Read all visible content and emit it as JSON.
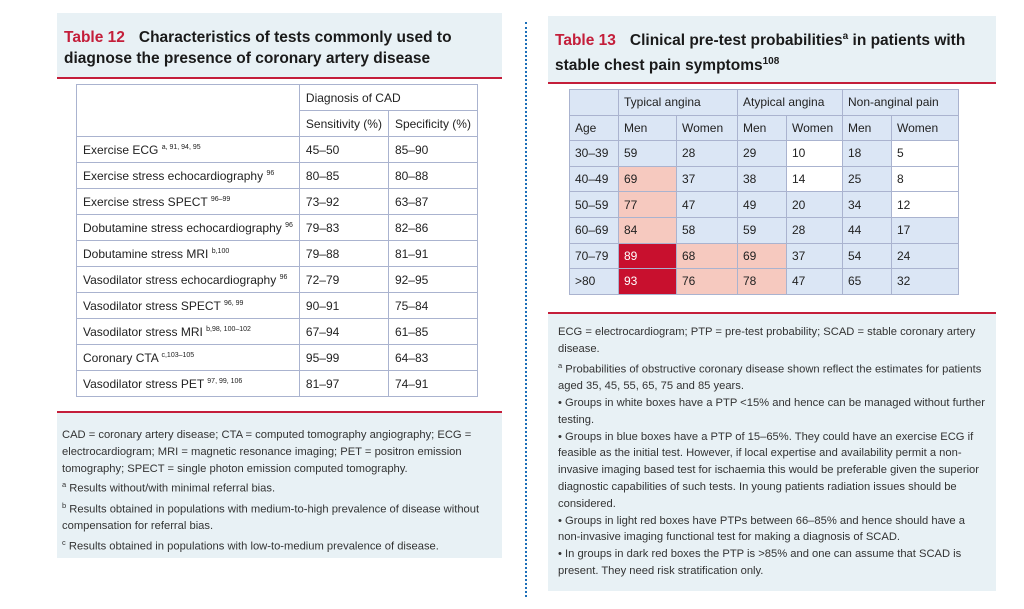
{
  "table12": {
    "number": "Table 12",
    "title": "Characteristics of tests commonly used to diagnose the presence of coronary artery disease",
    "header_group": "Diagnosis of CAD",
    "col_sensitivity": "Sensitivity (%)",
    "col_specificity": "Specificity (%)",
    "rows": [
      {
        "test": "Exercise ECG",
        "ref": "a, 91, 94, 95",
        "sens": "45–50",
        "spec": "85–90"
      },
      {
        "test": "Exercise stress echocardiography",
        "ref": "96",
        "sens": "80–85",
        "spec": "80–88"
      },
      {
        "test": "Exercise stress SPECT",
        "ref": "96–99",
        "sens": "73–92",
        "spec": "63–87"
      },
      {
        "test": "Dobutamine stress echocardiography",
        "ref": "96",
        "sens": "79–83",
        "spec": "82–86"
      },
      {
        "test": "Dobutamine stress MRI",
        "ref": "b,100",
        "sens": "79–88",
        "spec": "81–91"
      },
      {
        "test": "Vasodilator stress echocardiography",
        "ref": "96",
        "sens": "72–79",
        "spec": "92–95"
      },
      {
        "test": "Vasodilator stress SPECT",
        "ref": "96, 99",
        "sens": "90–91",
        "spec": "75–84"
      },
      {
        "test": "Vasodilator stress MRI",
        "ref": "b,98, 100–102",
        "sens": "67–94",
        "spec": "61–85"
      },
      {
        "test": "Coronary CTA",
        "ref": "c,103–105",
        "sens": "95–99",
        "spec": "64–83"
      },
      {
        "test": "Vasodilator stress PET",
        "ref": "97, 99, 106",
        "sens": "81–97",
        "spec": "74–91"
      }
    ],
    "notes": {
      "abbrev": "CAD = coronary artery disease; CTA = computed tomography angiography; ECG = electrocardiogram; MRI = magnetic resonance imaging; PET = positron emission tomography; SPECT = single photon emission computed tomography.",
      "a_mark": "a",
      "a": "Results without/with minimal referral bias.",
      "b_mark": "b",
      "b": "Results obtained in populations with medium-to-high prevalence of disease without compensation for referral bias.",
      "c_mark": "c",
      "c": "Results obtained in populations with low-to-medium prevalence of disease."
    }
  },
  "table13": {
    "number": "Table 13",
    "title_a": "Clinical pre-test probabilities",
    "title_sup": "a",
    "title_b": " in patients with stable chest pain symptoms",
    "title_ref": "108",
    "groups": [
      "Typical angina",
      "Atypical angina",
      "Non-anginal pain"
    ],
    "age_label": "Age",
    "men": "Men",
    "women": "Women",
    "rows": [
      {
        "age": "30–39",
        "v": [
          "59",
          "28",
          "29",
          "10",
          "18",
          "5"
        ]
      },
      {
        "age": "40–49",
        "v": [
          "69",
          "37",
          "38",
          "14",
          "25",
          "8"
        ]
      },
      {
        "age": "50–59",
        "v": [
          "77",
          "47",
          "49",
          "20",
          "34",
          "12"
        ]
      },
      {
        "age": "60–69",
        "v": [
          "84",
          "58",
          "59",
          "28",
          "44",
          "17"
        ]
      },
      {
        "age": "70–79",
        "v": [
          "89",
          "68",
          "69",
          "37",
          "54",
          "24"
        ]
      },
      {
        "age": ">80",
        "v": [
          "93",
          "76",
          "78",
          "47",
          "65",
          "32"
        ]
      }
    ],
    "notes": {
      "abbrev": "ECG = electrocardiogram; PTP = pre-test probability; SCAD = stable coronary artery disease.",
      "a_mark": "a",
      "a": "Probabilities of obstructive coronary disease shown reflect the estimates for patients aged 35, 45, 55, 65, 75 and 85 years.",
      "b1": "• Groups in white boxes have a PTP <15% and hence can be managed without further testing.",
      "b2": "• Groups in blue boxes have a PTP of 15–65%. They could have an exercise ECG if feasible as the initial test. However, if local expertise and availability permit a non-invasive imaging based test for ischaemia this would be preferable given the superior diagnostic capabilities of such tests. In young patients radiation issues should be considered.",
      "b3": "• Groups in light red boxes have PTPs between 66–85% and hence should have a non-invasive imaging functional test for making a diagnosis of SCAD.",
      "b4": "• In groups in dark red boxes the PTP is >85% and one can assume that SCAD is present. They need risk stratification only."
    }
  },
  "colors": {
    "accent": "#c41e3a",
    "panel": "#e8f1f5",
    "white_box": "#ffffff",
    "blue_box": "#dbe6f5",
    "light_red_box": "#f6c9bf",
    "dark_red_box": "#c8102e",
    "divider": "#1d6fb8"
  }
}
